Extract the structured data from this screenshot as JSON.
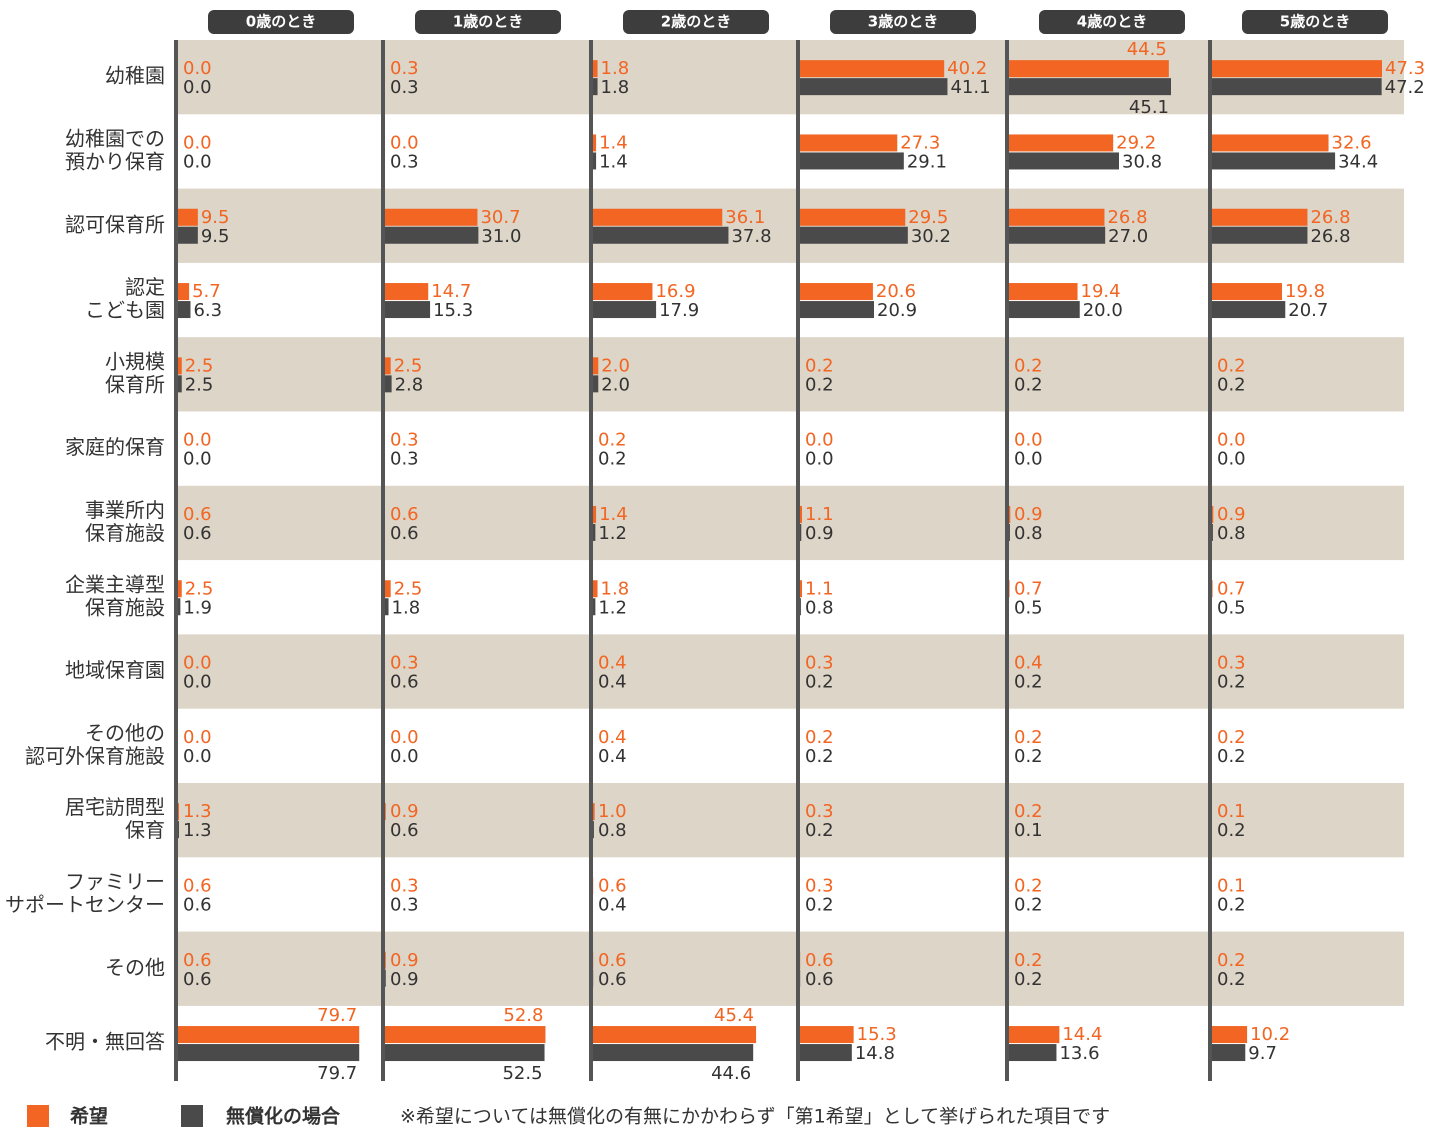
{
  "chart_data": {
    "type": "bar",
    "orientation": "horizontal",
    "categories": [
      [
        "幼稚園"
      ],
      [
        "幼稚園での",
        "預かり保育"
      ],
      [
        "認可保育所"
      ],
      [
        "認定",
        "こども園"
      ],
      [
        "小規模",
        "保育所"
      ],
      [
        "家庭的保育"
      ],
      [
        "事業所内",
        "保育施設"
      ],
      [
        "企業主導型",
        "保育施設"
      ],
      [
        "地域保育園"
      ],
      [
        "その他の",
        "認可外保育施設"
      ],
      [
        "居宅訪問型",
        "保育"
      ],
      [
        "ファミリー",
        "サポートセンター"
      ],
      [
        "その他"
      ],
      [
        "不明・無回答"
      ]
    ],
    "series": [
      {
        "name": "希望",
        "color": "#f26522",
        "label_color": "#f26522"
      },
      {
        "name": "無償化の場合",
        "color": "#4a4a4a",
        "label_color": "#333333"
      }
    ],
    "note": "※希望については無償化の有無にかかわらず「第1希望」として挙げられた項目です",
    "panels": [
      {
        "title": "0歳のとき",
        "xlim": [
          0,
          87
        ],
        "series": [
          {
            "values": [
              0.0,
              0.0,
              9.5,
              5.7,
              2.5,
              0.0,
              0.6,
              2.5,
              0.0,
              0.0,
              1.3,
              0.6,
              0.6,
              79.7
            ],
            "value_labels": [
              "0.0",
              "0.0",
              "9.5",
              "5.7",
              "2.5",
              "0.0",
              "0.6",
              "2.5",
              "0.0",
              "0.0",
              "1.3",
              "0.6",
              "0.6",
              "79.7"
            ]
          },
          {
            "values": [
              0.0,
              0.0,
              9.5,
              6.3,
              2.5,
              0.0,
              0.6,
              1.9,
              0.0,
              0.0,
              1.3,
              0.6,
              0.6,
              79.7
            ],
            "value_labels": [
              "0.0",
              "0.0",
              "9.5",
              "6.3",
              "2.5",
              "0.0",
              "0.6",
              "1.9",
              "0.0",
              "0.0",
              "1.3",
              "0.6",
              "0.6",
              "79.7"
            ]
          }
        ]
      },
      {
        "title": "1歳のとき",
        "xlim": [
          0,
          65
        ],
        "series": [
          {
            "values": [
              0.3,
              0.0,
              30.7,
              14.7,
              2.5,
              0.3,
              0.6,
              2.5,
              0.3,
              0.0,
              0.9,
              0.3,
              0.9,
              52.8
            ],
            "value_labels": [
              "0.3",
              "0.0",
              "30.7",
              "14.7",
              "2.5",
              "0.3",
              "0.6",
              "2.5",
              "0.3",
              "0.0",
              "0.9",
              "0.3",
              "0.9",
              "52.8"
            ]
          },
          {
            "values": [
              0.3,
              0.3,
              31.0,
              15.3,
              2.8,
              0.3,
              0.6,
              1.8,
              0.6,
              0.0,
              0.6,
              0.3,
              0.9,
              52.5
            ],
            "value_labels": [
              "0.3",
              "0.3",
              "31.0",
              "15.3",
              "2.8",
              "0.3",
              "0.6",
              "1.8",
              "0.6",
              "0.0",
              "0.6",
              "0.3",
              "0.9",
              "52.5"
            ]
          }
        ]
      },
      {
        "title": "2歳のとき",
        "xlim": [
          0,
          55
        ],
        "series": [
          {
            "values": [
              1.8,
              1.4,
              36.1,
              16.9,
              2.0,
              0.2,
              1.4,
              1.8,
              0.4,
              0.4,
              1.0,
              0.6,
              0.6,
              45.4
            ],
            "value_labels": [
              "1.8",
              "1.4",
              "36.1",
              "16.9",
              "2.0",
              "0.2",
              "1.4",
              "1.8",
              "0.4",
              "0.4",
              "1.0",
              "0.6",
              "0.6",
              "45.4"
            ]
          },
          {
            "values": [
              1.8,
              1.4,
              37.8,
              17.9,
              2.0,
              0.2,
              1.2,
              1.2,
              0.4,
              0.4,
              0.8,
              0.4,
              0.6,
              44.6
            ],
            "value_labels": [
              "1.8",
              "1.4",
              "37.8",
              "17.9",
              "2.0",
              "0.2",
              "1.2",
              "1.2",
              "0.4",
              "0.4",
              "0.8",
              "0.4",
              "0.6",
              "44.6"
            ]
          }
        ]
      },
      {
        "title": "3歳のとき",
        "xlim": [
          0,
          55
        ],
        "series": [
          {
            "values": [
              40.2,
              27.3,
              29.5,
              20.6,
              0.2,
              0.0,
              1.1,
              1.1,
              0.3,
              0.2,
              0.3,
              0.3,
              0.6,
              15.3
            ],
            "value_labels": [
              "40.2",
              "27.3",
              "29.5",
              "20.6",
              "0.2",
              "0.0",
              "1.1",
              "1.1",
              "0.3",
              "0.2",
              "0.3",
              "0.3",
              "0.6",
              "15.3"
            ]
          },
          {
            "values": [
              41.1,
              29.1,
              30.2,
              20.9,
              0.2,
              0.0,
              0.9,
              0.8,
              0.2,
              0.2,
              0.2,
              0.2,
              0.6,
              14.8
            ],
            "value_labels": [
              "41.1",
              "29.1",
              "30.2",
              "20.9",
              "0.2",
              "0.0",
              "0.9",
              "0.8",
              "0.2",
              "0.2",
              "0.2",
              "0.2",
              "0.6",
              "14.8"
            ]
          }
        ]
      },
      {
        "title": "4歳のとき",
        "xlim": [
          0,
          55
        ],
        "series": [
          {
            "values": [
              44.5,
              29.2,
              26.8,
              19.4,
              0.2,
              0.0,
              0.9,
              0.7,
              0.4,
              0.2,
              0.2,
              0.2,
              0.2,
              14.4
            ],
            "value_labels": [
              "44.5",
              "29.2",
              "26.8",
              "19.4",
              "0.2",
              "0.0",
              "0.9",
              "0.7",
              "0.4",
              "0.2",
              "0.2",
              "0.2",
              "0.2",
              "14.4"
            ]
          },
          {
            "values": [
              45.1,
              30.8,
              27.0,
              20.0,
              0.2,
              0.0,
              0.8,
              0.5,
              0.2,
              0.2,
              0.1,
              0.2,
              0.2,
              13.6
            ],
            "value_labels": [
              "45.1",
              "30.8",
              "27.0",
              "20.0",
              "0.2",
              "0.0",
              "0.8",
              "0.5",
              "0.2",
              "0.2",
              "0.1",
              "0.2",
              "0.2",
              "13.6"
            ]
          }
        ]
      },
      {
        "title": "5歳のとき",
        "xlim": [
          0,
          55
        ],
        "series": [
          {
            "values": [
              47.3,
              32.6,
              26.8,
              19.8,
              0.2,
              0.0,
              0.9,
              0.7,
              0.3,
              0.2,
              0.1,
              0.1,
              0.2,
              10.2
            ],
            "value_labels": [
              "47.3",
              "32.6",
              "26.8",
              "19.8",
              "0.2",
              "0.0",
              "0.9",
              "0.7",
              "0.3",
              "0.2",
              "0.1",
              "0.1",
              "0.2",
              "10.2"
            ]
          },
          {
            "values": [
              47.2,
              34.4,
              26.8,
              20.7,
              0.2,
              0.0,
              0.8,
              0.5,
              0.2,
              0.2,
              0.2,
              0.2,
              0.2,
              9.7
            ],
            "value_labels": [
              "47.2",
              "34.4",
              "26.8",
              "20.7",
              "0.2",
              "0.0",
              "0.8",
              "0.5",
              "0.2",
              "0.2",
              "0.2",
              "0.2",
              "0.2",
              "9.7"
            ]
          }
        ]
      }
    ]
  }
}
